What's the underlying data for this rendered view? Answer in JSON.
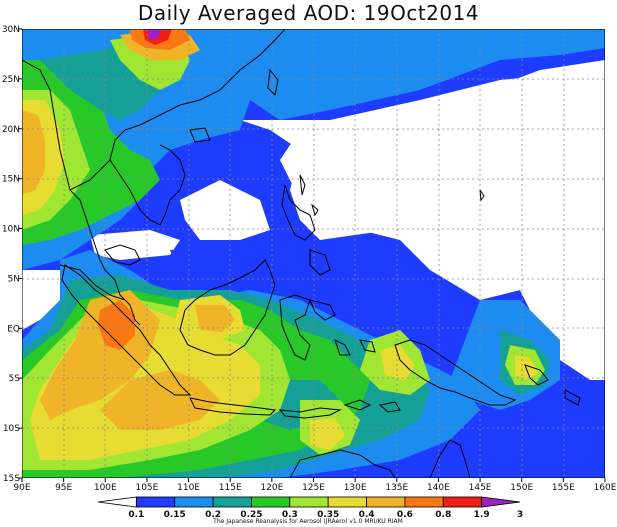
{
  "title": "Daily Averaged AOD: 19Oct2014",
  "credit": "The Japanese Reanalysis for Aerosol (JRAero) v1.0 MRI/KU RIAM",
  "lon_labels": [
    "90E",
    "95E",
    "100E",
    "105E",
    "110E",
    "115E",
    "120E",
    "125E",
    "130E",
    "135E",
    "140E",
    "145E",
    "150E",
    "155E",
    "160E"
  ],
  "lat_labels": [
    "30N",
    "25N",
    "20N",
    "15N",
    "10N",
    "5N",
    "EQ",
    "5S",
    "10S",
    "15S"
  ],
  "colorbar": {
    "labels": [
      "0.1",
      "0.15",
      "0.2",
      "0.25",
      "0.3",
      "0.35",
      "0.4",
      "0.6",
      "0.8",
      "1.9",
      "3"
    ],
    "colors": [
      "#ffffff",
      "#1e3cff",
      "#1c8cf0",
      "#14a096",
      "#28c828",
      "#a0e632",
      "#e6dc32",
      "#f0b428",
      "#fa7814",
      "#f01e14",
      "#a020c8"
    ]
  }
}
